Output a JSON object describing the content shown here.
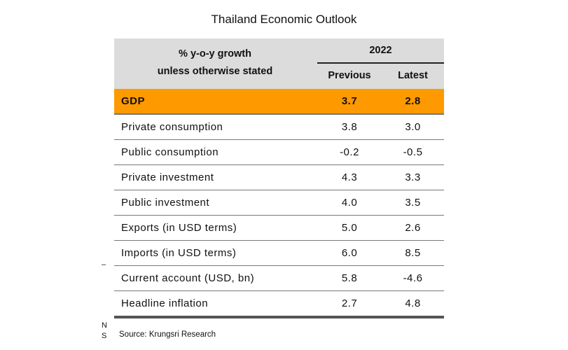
{
  "title": "Thailand Economic Outlook",
  "header": {
    "label_line1": "% y-o-y  growth",
    "label_line2": "unless otherwise stated",
    "year": "2022",
    "col_previous": "Previous",
    "col_latest": "Latest"
  },
  "rows": [
    {
      "label": "GDP",
      "previous": "3.7",
      "latest": "2.8"
    },
    {
      "label": "Private consumption",
      "previous": "3.8",
      "latest": "3.0"
    },
    {
      "label": "Public consumption",
      "previous": "-0.2",
      "latest": "-0.5"
    },
    {
      "label": "Private investment",
      "previous": "4.3",
      "latest": "3.3"
    },
    {
      "label": "Public investment",
      "previous": "4.0",
      "latest": "3.5"
    },
    {
      "label": "Exports (in USD terms)",
      "previous": "5.0",
      "latest": "2.6"
    },
    {
      "label": "Imports (in USD terms)",
      "previous": "6.0",
      "latest": "8.5"
    },
    {
      "label": "Current account (USD, bn)",
      "previous": "5.8",
      "latest": "-4.6"
    },
    {
      "label": "Headline inflation",
      "previous": "2.7",
      "latest": "4.8"
    }
  ],
  "source": "Source: Krungsri Research",
  "artifacts": {
    "dash": "–",
    "n": "N",
    "s": "S"
  },
  "colors": {
    "highlight": "#ff9900",
    "header_bg": "#dcdcdc"
  }
}
